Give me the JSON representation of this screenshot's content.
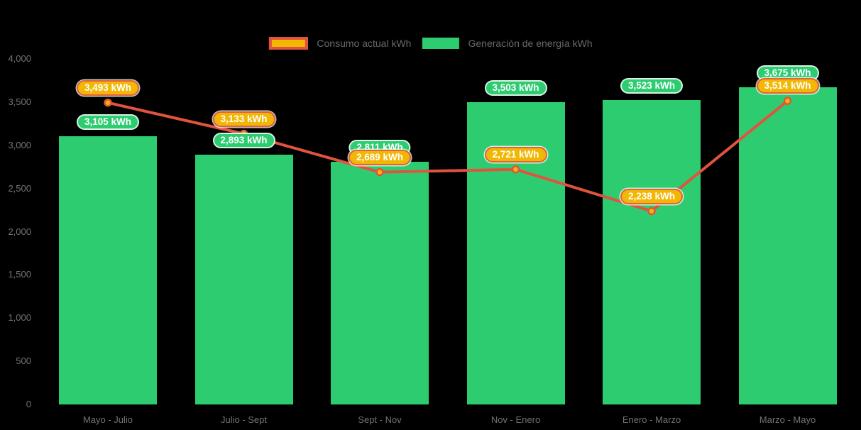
{
  "legend": {
    "items": [
      {
        "label": "Consumo actual kWh",
        "series": "line"
      },
      {
        "label": "Generación de energía kWh",
        "series": "bar"
      }
    ]
  },
  "chart_data": {
    "type": "combo-bar-line",
    "title": "",
    "xlabel": "",
    "ylabel": "",
    "background_color": "#000000",
    "grid": false,
    "legend_position": "top",
    "categories": [
      "Mayo - Julio",
      "Julio - Sept",
      "Sept - Nov",
      "Nov - Enero",
      "Enero - Marzo",
      "Marzo - Mayo"
    ],
    "bar_series": {
      "name": "Generación de energía kWh",
      "type": "bar",
      "color": "#2ecc71",
      "values": [
        3105,
        2893,
        2811,
        3503,
        3523,
        3675
      ],
      "point_labels": [
        "3,105 kWh",
        "2,893 kWh",
        "2,811 kWh",
        "3,503 kWh",
        "3,523 kWh",
        "3,675 kWh"
      ],
      "label_bg": "#2ecc71"
    },
    "line_series": {
      "name": "Consumo actual kWh",
      "type": "line",
      "color": "#e2533f",
      "point_fill": "#f2b705",
      "values": [
        3493,
        3133,
        2689,
        2721,
        2238,
        3514
      ],
      "point_labels": [
        "3,493 kWh",
        "3,133 kWh",
        "2,689 kWh",
        "2,721 kWh",
        "2,238 kWh",
        "3,514 kWh"
      ],
      "label_bg": "#f2b705",
      "label_border": "#e2613f"
    },
    "y_axis": {
      "min": 0,
      "max": 4000,
      "ticks": [
        {
          "label": "0",
          "value": 0
        },
        {
          "label": "500",
          "value": 500
        },
        {
          "label": "1,000",
          "value": 1000
        },
        {
          "label": "1,500",
          "value": 1500
        },
        {
          "label": "2,000",
          "value": 2000
        },
        {
          "label": "2,500",
          "value": 2500
        },
        {
          "label": "3,000",
          "value": 3000
        },
        {
          "label": "3,500",
          "value": 3500
        },
        {
          "label": "4,000",
          "value": 4000
        }
      ]
    }
  }
}
